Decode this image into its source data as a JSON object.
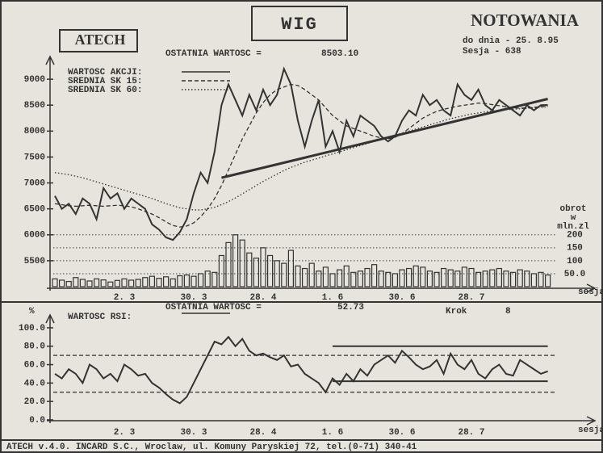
{
  "chart_data": [
    {
      "type": "line",
      "title": "WIG",
      "heading": "NOTOWANIA",
      "date_label": "do dnia - 25. 8.95",
      "session_label": "Sesja - 638",
      "logo": "ATECH",
      "last_label": "OSTATNIA WARTOSC =",
      "last_value": "8503.10",
      "xlabel": "sesja",
      "y2label": [
        "obrot",
        "w",
        "mln.zl"
      ],
      "categories": [
        null,
        null,
        null,
        null,
        null,
        null,
        null,
        null,
        null,
        null,
        "2. 3",
        null,
        null,
        null,
        null,
        null,
        null,
        null,
        null,
        null,
        "30. 3",
        null,
        null,
        null,
        null,
        null,
        null,
        null,
        null,
        null,
        "28. 4",
        null,
        null,
        null,
        null,
        null,
        null,
        null,
        null,
        null,
        "1. 6",
        null,
        null,
        null,
        null,
        null,
        null,
        null,
        null,
        null,
        "30. 6",
        null,
        null,
        null,
        null,
        null,
        null,
        null,
        null,
        null,
        "28. 7",
        null,
        null,
        null,
        null,
        null,
        null,
        null,
        null,
        null,
        null,
        null
      ],
      "series": [
        {
          "name": "WARTOSC AKCJI:",
          "color": "#333333",
          "style": "solid",
          "values": [
            6750,
            6500,
            6600,
            6400,
            6700,
            6600,
            6300,
            6900,
            6700,
            6800,
            6500,
            6700,
            6600,
            6500,
            6200,
            6100,
            5950,
            5900,
            6050,
            6300,
            6800,
            7200,
            7000,
            7600,
            8500,
            8900,
            8600,
            8300,
            8700,
            8400,
            8800,
            8500,
            8700,
            9200,
            8900,
            8200,
            7700,
            8200,
            8600,
            7700,
            8000,
            7600,
            8200,
            7900,
            8300,
            8200,
            8100,
            7900,
            7800,
            7900,
            8200,
            8400,
            8300,
            8700,
            8500,
            8600,
            8400,
            8300,
            8900,
            8700,
            8600,
            8800,
            8500,
            8400,
            8600,
            8500,
            8400,
            8300,
            8500,
            8400,
            8500,
            8503.1
          ]
        },
        {
          "name": "SREDNIA SK 15:",
          "color": "#333333",
          "style": "dashed",
          "values": [
            6600,
            6580,
            6560,
            6550,
            6560,
            6570,
            6560,
            6550,
            6560,
            6570,
            6560,
            6540,
            6500,
            6450,
            6400,
            6330,
            6250,
            6180,
            6150,
            6170,
            6230,
            6350,
            6500,
            6700,
            6950,
            7250,
            7550,
            7850,
            8100,
            8350,
            8550,
            8700,
            8800,
            8850,
            8900,
            8880,
            8800,
            8700,
            8600,
            8450,
            8300,
            8200,
            8100,
            8050,
            8000,
            7950,
            7900,
            7870,
            7850,
            7880,
            7950,
            8050,
            8150,
            8250,
            8320,
            8380,
            8420,
            8450,
            8480,
            8500,
            8520,
            8540,
            8530,
            8510,
            8490,
            8470,
            8450,
            8440,
            8450,
            8460,
            8470,
            8480
          ]
        },
        {
          "name": "SREDNIA SK 60:",
          "color": "#333333",
          "style": "dotted",
          "values": [
            7200,
            7180,
            7160,
            7130,
            7100,
            7060,
            7020,
            6980,
            6940,
            6900,
            6860,
            6820,
            6780,
            6740,
            6700,
            6650,
            6600,
            6560,
            6520,
            6500,
            6480,
            6480,
            6500,
            6530,
            6580,
            6640,
            6710,
            6790,
            6870,
            6950,
            7030,
            7100,
            7170,
            7240,
            7300,
            7350,
            7400,
            7440,
            7480,
            7520,
            7560,
            7600,
            7640,
            7680,
            7720,
            7760,
            7800,
            7840,
            7880,
            7920,
            7960,
            8000,
            8040,
            8080,
            8120,
            8160,
            8200,
            8240,
            8270,
            8300,
            8330,
            8350,
            8370,
            8390,
            8400,
            8410,
            8420,
            8430,
            8440,
            8450,
            8460,
            8470
          ]
        },
        {
          "type": "bar",
          "axis": "y2",
          "color": "#333333",
          "values": [
            30,
            25,
            20,
            35,
            28,
            22,
            30,
            26,
            18,
            24,
            30,
            25,
            28,
            35,
            40,
            32,
            38,
            30,
            42,
            45,
            40,
            50,
            60,
            55,
            120,
            170,
            200,
            180,
            130,
            110,
            150,
            120,
            100,
            90,
            140,
            80,
            70,
            90,
            60,
            75,
            50,
            65,
            80,
            55,
            60,
            70,
            85,
            60,
            55,
            50,
            65,
            70,
            80,
            75,
            60,
            55,
            70,
            65,
            60,
            75,
            70,
            55,
            60,
            65,
            70,
            60,
            55,
            65,
            60,
            50,
            55,
            45
          ]
        }
      ],
      "trend_line": {
        "x": [
          24,
          71
        ],
        "y": [
          7100,
          8620
        ]
      },
      "ylim": [
        5000,
        9500
      ],
      "yticks": [
        5500,
        6000,
        6500,
        7000,
        7500,
        8000,
        8500,
        9000
      ],
      "y2lim": [
        0,
        900
      ],
      "y2ticks": [
        {
          "value": 50,
          "label": "50.0"
        },
        100,
        150,
        200
      ],
      "grid": true
    },
    {
      "type": "line",
      "ylabel": "%",
      "last_label": "OSTATNIA WARTOSC =",
      "last_value": "52.73",
      "step_label": "Krok",
      "step_value": "8",
      "xlabel": "sesja",
      "categories": [
        null,
        null,
        null,
        null,
        null,
        null,
        null,
        null,
        null,
        null,
        "2. 3",
        null,
        null,
        null,
        null,
        null,
        null,
        null,
        null,
        null,
        "30. 3",
        null,
        null,
        null,
        null,
        null,
        null,
        null,
        null,
        null,
        "28. 4",
        null,
        null,
        null,
        null,
        null,
        null,
        null,
        null,
        null,
        "1. 6",
        null,
        null,
        null,
        null,
        null,
        null,
        null,
        null,
        null,
        "30. 6",
        null,
        null,
        null,
        null,
        null,
        null,
        null,
        null,
        null,
        "28. 7",
        null,
        null,
        null,
        null,
        null,
        null,
        null,
        null,
        null,
        null,
        null
      ],
      "series": [
        {
          "name": "WARTOSC RSI:",
          "color": "#333333",
          "style": "solid",
          "values": [
            50,
            45,
            55,
            50,
            40,
            60,
            55,
            45,
            50,
            42,
            60,
            55,
            48,
            50,
            40,
            35,
            28,
            22,
            18,
            25,
            40,
            55,
            70,
            85,
            82,
            90,
            80,
            88,
            75,
            70,
            72,
            68,
            65,
            70,
            58,
            60,
            50,
            45,
            40,
            30,
            45,
            38,
            50,
            42,
            55,
            48,
            60,
            65,
            70,
            62,
            75,
            68,
            60,
            55,
            58,
            65,
            50,
            72,
            60,
            55,
            65,
            50,
            45,
            55,
            60,
            50,
            48,
            65,
            60,
            55,
            50,
            52.73
          ]
        }
      ],
      "reference_lines": [
        70,
        30
      ],
      "channel_lines": [
        {
          "x": [
            40,
            71
          ],
          "y": [
            80,
            80
          ]
        },
        {
          "x": [
            40,
            71
          ],
          "y": [
            42,
            42
          ]
        }
      ],
      "ylim": [
        -4,
        114
      ],
      "yticks": [
        {
          "value": 0,
          "label": "0.0"
        },
        {
          "value": 20,
          "label": "20.0"
        },
        {
          "value": 40,
          "label": "40.0"
        },
        {
          "value": 60,
          "label": "60.0"
        },
        {
          "value": 80,
          "label": "80.0"
        },
        {
          "value": 100,
          "label": "100.0"
        }
      ]
    }
  ],
  "footer": "ATECH v.4.0. INCARD S.C., Wroclaw, ul. Komuny Paryskiej 72, tel.(0-71) 340-41"
}
